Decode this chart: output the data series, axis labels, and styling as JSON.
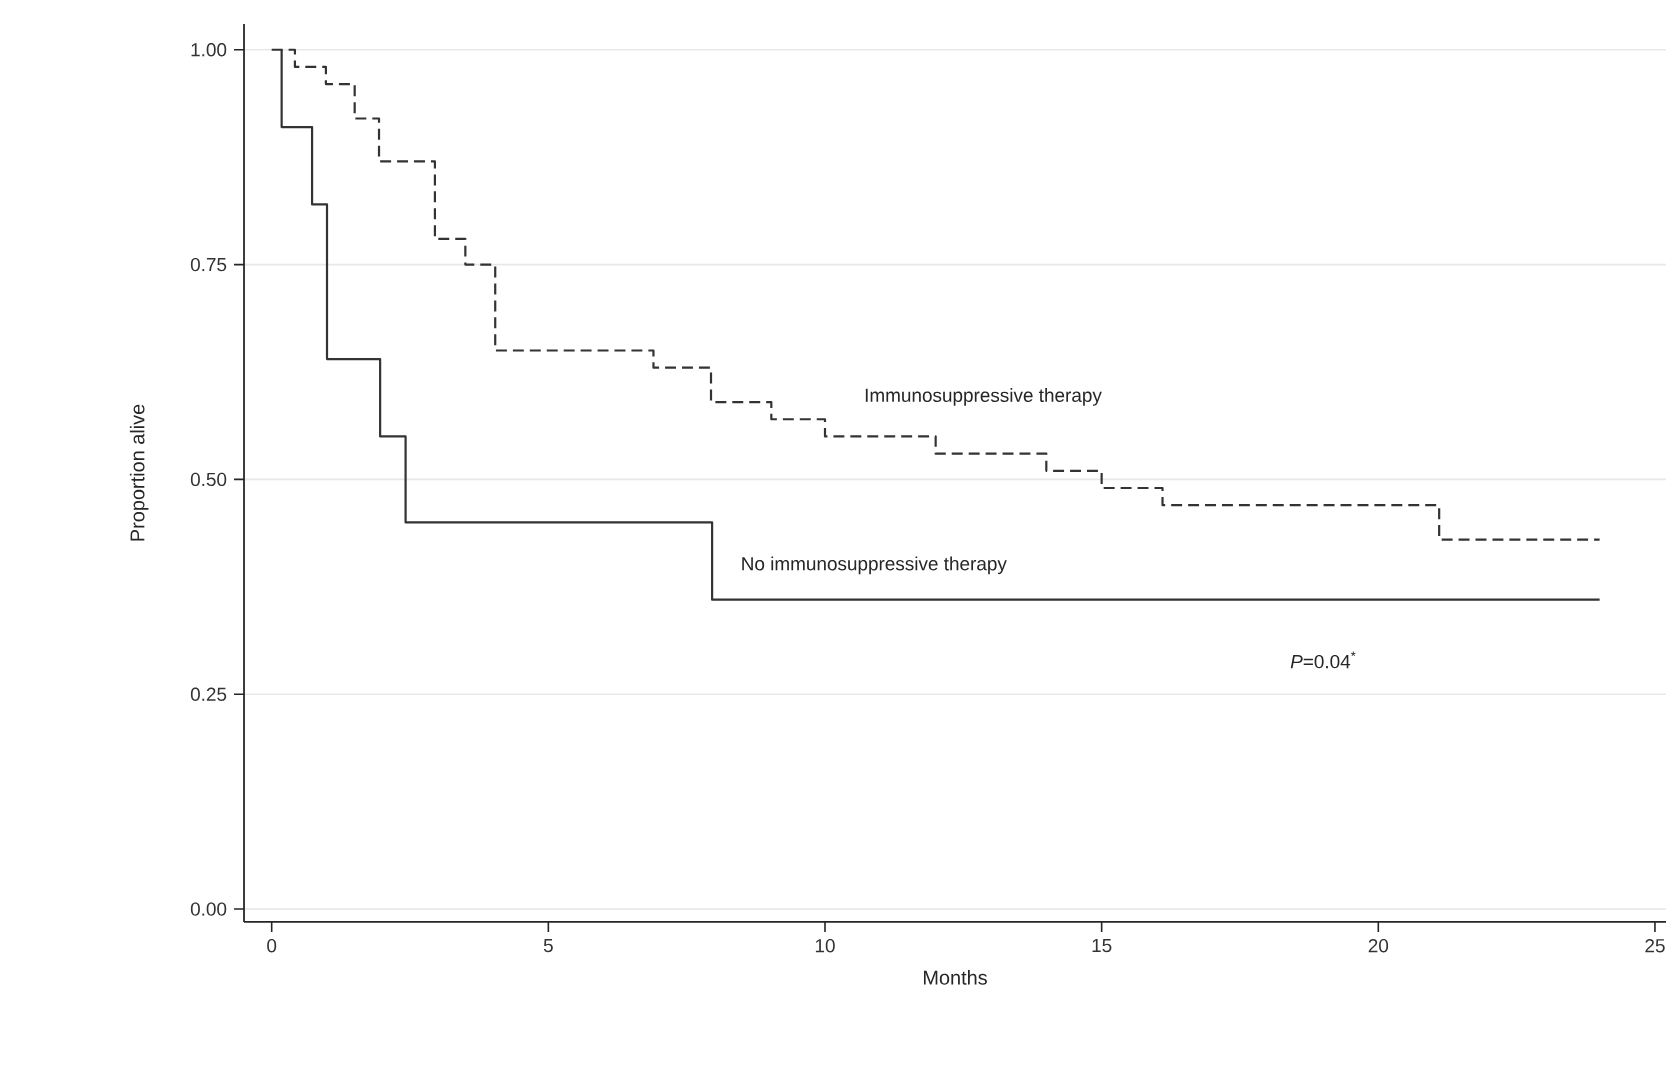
{
  "chart_data": {
    "type": "step",
    "xlabel": "Months",
    "ylabel": "Proportion alive",
    "xlim": [
      -0.5,
      25.2
    ],
    "ylim": [
      -0.015,
      1.03
    ],
    "xticks": [
      0,
      5,
      10,
      15,
      20,
      25
    ],
    "yticks": [
      {
        "value": 0,
        "label": "0.00"
      },
      {
        "value": 0.25,
        "label": "0.25"
      },
      {
        "value": 0.5,
        "label": "0.50"
      },
      {
        "value": 0.75,
        "label": "0.75"
      },
      {
        "value": 1,
        "label": "1.00"
      }
    ],
    "grid": "y",
    "series": [
      {
        "name": "Immunosuppressive therapy",
        "color": "#333333",
        "line_style": "dashed",
        "x": [
          0,
          0.42,
          0.98,
          1.5,
          1.94,
          2.95,
          3.5,
          4.04,
          6.9,
          7.94,
          9.03,
          10.0,
          12.0,
          14.0,
          15.0,
          16.1,
          21.1,
          24
        ],
        "values": [
          1,
          0.98,
          0.96,
          0.92,
          0.87,
          0.78,
          0.75,
          0.65,
          0.63,
          0.59,
          0.57,
          0.55,
          0.53,
          0.51,
          0.49,
          0.47,
          0.43,
          0.43
        ]
      },
      {
        "name": "No immunosuppressive therapy",
        "color": "#333333",
        "line_style": "solid",
        "x": [
          0.18,
          0.18,
          0.73,
          1.0,
          1.96,
          2.42,
          7.96,
          24
        ],
        "values": [
          1,
          0.91,
          0.82,
          0.64,
          0.55,
          0.45,
          0.36,
          0.36
        ]
      }
    ],
    "annotations": [
      "*P*=0.04$^{*}$"
    ]
  }
}
